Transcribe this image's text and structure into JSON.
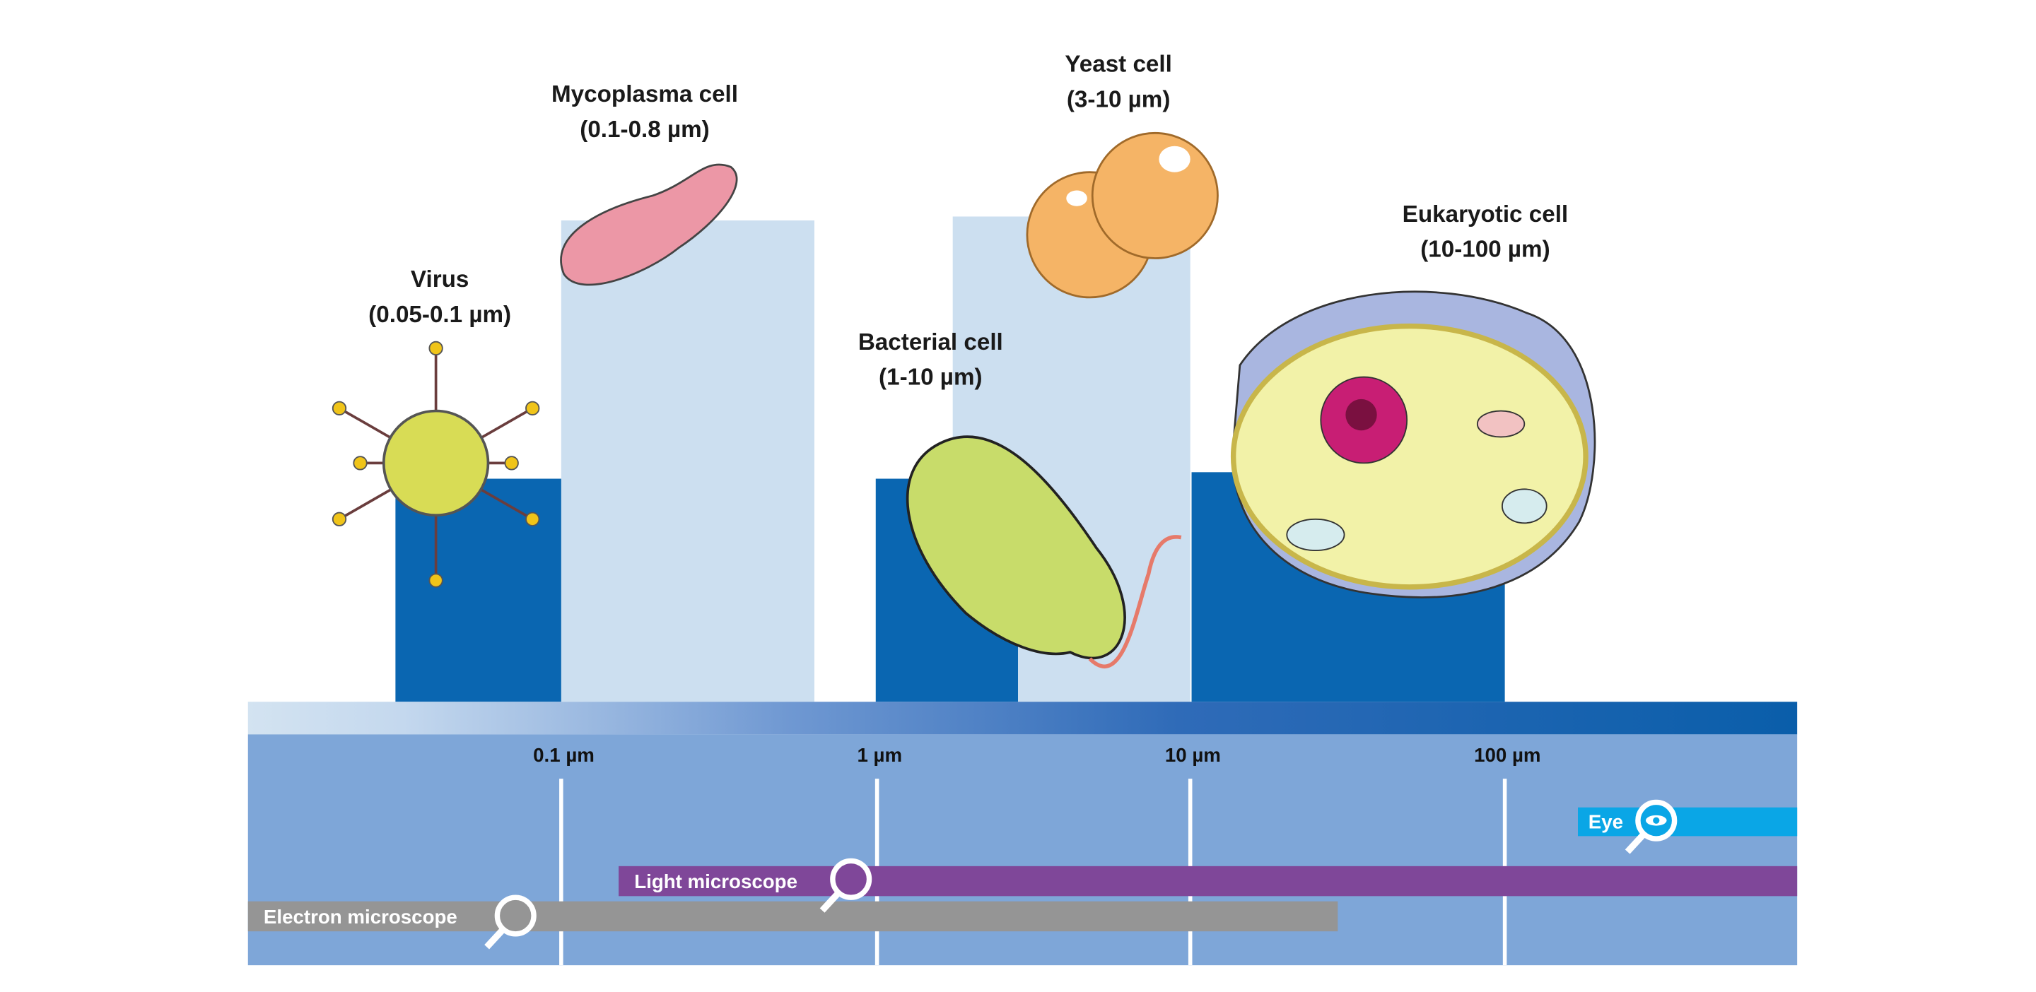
{
  "organisms": [
    {
      "name": "Virus",
      "range": "(0.05-0.1 µm)"
    },
    {
      "name": "Mycoplasma cell",
      "range": "(0.1-0.8 µm)"
    },
    {
      "name": "Bacterial cell",
      "range": "(1-10 µm)"
    },
    {
      "name": "Yeast cell",
      "range": "(3-10 µm)"
    },
    {
      "name": "Eukaryotic cell",
      "range": "(10-100 µm)"
    }
  ],
  "scale": {
    "ticks": [
      "0.1 µm",
      "1 µm",
      "10 µm",
      "100 µm"
    ]
  },
  "tools": [
    "Eye",
    "Light microscope",
    "Electron microscope"
  ]
}
